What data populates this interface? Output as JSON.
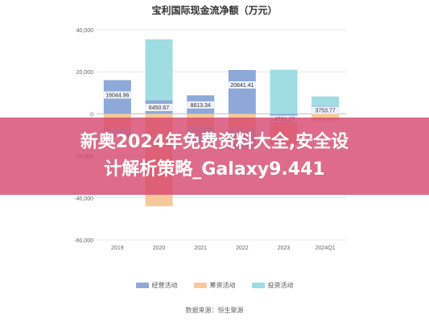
{
  "chart_data": {
    "type": "bar",
    "title": "宝利国际现金流净额（万元）",
    "categories": [
      "2019",
      "2020",
      "2021",
      "2022",
      "2023",
      "2024Q1"
    ],
    "series": [
      {
        "name": "经营活动",
        "color": "#8ea9d8",
        "values": [
          16044.96,
          6450.67,
          8813.34,
          20841.41,
          -4731.27,
          3753.77
        ]
      },
      {
        "name": "筹资活动",
        "color": "#f7c89b",
        "values": [
          -7000,
          -44000,
          -6000,
          -7000,
          -10000,
          -3000
        ]
      },
      {
        "name": "投资活动",
        "color": "#9fdde3",
        "values": [
          -4000,
          29000,
          -8000,
          -10000,
          21000,
          4500
        ]
      }
    ],
    "data_labels": [
      "16044.96",
      "6450.67",
      "8813.34",
      "20841.41",
      "-4731.27",
      "3753.77"
    ],
    "y_ticks": [
      "40,000",
      "20,000",
      "0",
      "-20,000",
      "-40,000",
      "-60,000"
    ],
    "ylim": [
      -60000,
      40000
    ],
    "grid": true,
    "legend_position": "bottom"
  },
  "source": "数据来源：恒生聚源",
  "banner": {
    "line1": "新奥2024年免费资料大全,安全设",
    "line2": "计解析策略_Galaxy9.441"
  }
}
